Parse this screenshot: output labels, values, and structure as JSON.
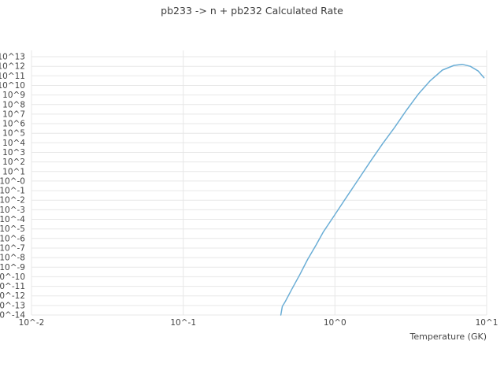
{
  "page": {
    "background": "#ffffff"
  },
  "chart_data": {
    "type": "line",
    "title": "pb233 -> n + pb232 Calculated Rate",
    "xlabel": "Temperature (GK)",
    "ylabel": "",
    "x_scale": "log",
    "y_scale": "log",
    "xlim": [
      0.01,
      10
    ],
    "ylim": [
      1e-14,
      10000000000000.0
    ],
    "grid": true,
    "legend": false,
    "x_tick_values": [
      0.01,
      0.1,
      1,
      10
    ],
    "x_tick_labels": [
      "10^-2",
      "10^-1",
      "10^0",
      "10^1"
    ],
    "y_tick_exponents": [
      13,
      12,
      11,
      10,
      9,
      8,
      7,
      6,
      5,
      4,
      3,
      2,
      1,
      0,
      -1,
      -2,
      -3,
      -4,
      -5,
      -6,
      -7,
      -8,
      -9,
      -10,
      -11,
      -12,
      -13,
      -14
    ],
    "y_tick_labels": [
      "10^13",
      "10^12",
      "10^11",
      "10^10",
      "10^9",
      "10^8",
      "10^7",
      "10^6",
      "10^5",
      "10^4",
      "10^3",
      "10^2",
      "10^1",
      "10^-0",
      "10^-1",
      "10^-2",
      "10^-3",
      "10^-4",
      "10^-5",
      "10^-6",
      "10^-7",
      "10^-8",
      "10^-9",
      "10^-10",
      "10^-11",
      "10^-12",
      "10^-13",
      "10^-14"
    ],
    "colors": {
      "line": "#6baed6",
      "grid": "#e7e7e7",
      "tick_text": "#444444",
      "title_text": "#3d3d3d"
    },
    "series": [
      {
        "name": "pb233 -> n + pb232 calculated rate",
        "temperature_gk": [
          0.44,
          0.45,
          0.47,
          0.52,
          0.59,
          0.66,
          0.75,
          0.84,
          1.0,
          1.2,
          1.43,
          1.72,
          2.06,
          2.47,
          2.96,
          3.55,
          4.25,
          5.1,
          6.1,
          6.9,
          7.8,
          8.8,
          9.6
        ],
        "log10_rate": [
          -14.0,
          -13.1,
          -12.6,
          -11.3,
          -9.7,
          -8.2,
          -6.7,
          -5.3,
          -3.5,
          -1.6,
          0.2,
          2.1,
          3.9,
          5.6,
          7.4,
          9.1,
          10.5,
          11.6,
          12.1,
          12.2,
          12.0,
          11.5,
          10.8
        ]
      }
    ]
  }
}
